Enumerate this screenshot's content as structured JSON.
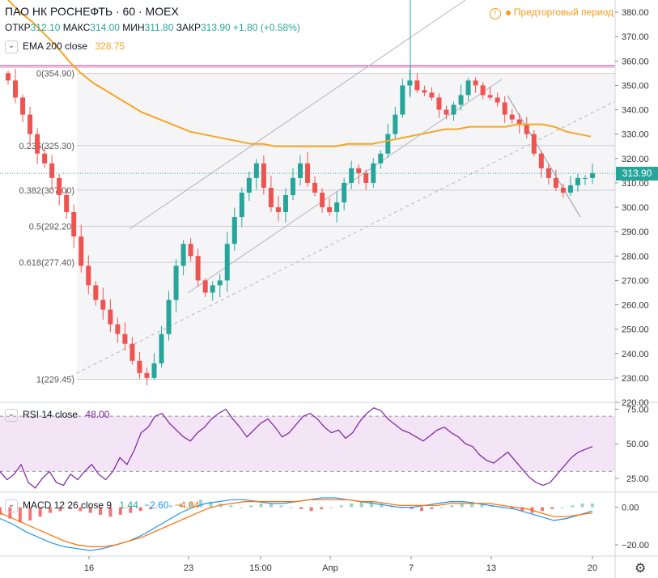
{
  "header": {
    "title": "ПАО НК РОСНЕФТЬ · 60 · MOEX",
    "ohlc": [
      {
        "k": "ОТКР",
        "v": "312.10"
      },
      {
        "k": "МАКС",
        "v": "314.00"
      },
      {
        "k": "МИН",
        "v": "311.80"
      },
      {
        "k": "ЗАКР",
        "v": "313.90"
      },
      {
        "k": "",
        "v": "+1.80 (+0.58%)"
      }
    ],
    "ema_label": "EMA 200 close",
    "ema_value": "328.75",
    "premarket": "Предторговый период"
  },
  "last_price_tag": "313.90",
  "rsi_legend": {
    "label": "RSI 14 close",
    "value": "48.00"
  },
  "macd_legend": {
    "label": "MACD 12 26 close 9",
    "v1": "1.44",
    "v2": "−2.60",
    "v3": "−4.04"
  },
  "colors": {
    "up": "#26a69a",
    "down": "#ef5350",
    "ema": "#f5a623",
    "fib_line": "#b2b5be",
    "resistance": "#d45fa8",
    "rsi_line": "#7b1fa2",
    "rsi_band": "#f3e5f5",
    "macd_line": "#2196f3",
    "signal_line": "#ff6d00",
    "price_tag": "#26a69a"
  },
  "chart_data": [
    {
      "type": "candlestick",
      "title": "ПАО НК РОСНЕФТЬ · 60 · MOEX",
      "ylim": [
        220,
        385
      ],
      "yticks": [
        "380.00",
        "370.00",
        "360.00",
        "350.00",
        "340.00",
        "330.00",
        "320.00",
        "310.00",
        "300.00",
        "290.00",
        "280.00",
        "270.00",
        "260.00",
        "250.00",
        "240.00",
        "230.00",
        "220.00"
      ],
      "x_ticks": [
        "16",
        "23",
        "15:00",
        "Апр",
        "7",
        "13",
        "20"
      ],
      "close_path": [
        352,
        345,
        338,
        330,
        322,
        318,
        312,
        305,
        298,
        288,
        276,
        268,
        262,
        258,
        252,
        248,
        244,
        237,
        232,
        230,
        236,
        248,
        262,
        276,
        285,
        280,
        270,
        265,
        268,
        270,
        285,
        296,
        306,
        312,
        318,
        308,
        300,
        298,
        305,
        312,
        318,
        310,
        306,
        300,
        298,
        302,
        310,
        316,
        314,
        310,
        318,
        322,
        330,
        338,
        350,
        352,
        348,
        347,
        345,
        340,
        338,
        342,
        346,
        352,
        350,
        346,
        345,
        343,
        338,
        336,
        334,
        330,
        322,
        316,
        312,
        308,
        306,
        309,
        312,
        312,
        314
      ],
      "ema200": [
        385,
        380,
        376,
        371,
        366,
        360,
        355,
        351,
        348,
        345,
        342,
        339,
        337,
        335,
        333,
        331,
        330,
        329,
        328,
        327,
        326,
        326,
        325,
        325,
        325,
        325,
        325,
        325,
        326,
        326,
        326,
        327,
        328,
        329,
        330,
        331,
        332,
        332,
        333,
        333,
        333,
        333,
        334,
        334,
        334,
        333,
        331,
        330,
        329
      ],
      "fib_levels": [
        {
          "label": "0(354.90)",
          "value": 354.9
        },
        {
          "label": "0.236(325.30)",
          "value": 325.3
        },
        {
          "label": "0.382(307.00)",
          "value": 307.0
        },
        {
          "label": "0.5(292.20)",
          "value": 292.2
        },
        {
          "label": "0.618(277.40)",
          "value": 277.4
        },
        {
          "label": "1(229.45)",
          "value": 229.45
        }
      ],
      "resistance": 358,
      "last_price": 313.9,
      "ema_last": 328.75
    },
    {
      "type": "line",
      "title": "RSI 14 close",
      "ylim": [
        15,
        80
      ],
      "yticks": [
        "75.00",
        "50.00",
        "25.00"
      ],
      "bands": [
        30,
        70
      ],
      "values": [
        30,
        24,
        28,
        35,
        22,
        18,
        25,
        30,
        22,
        20,
        28,
        24,
        30,
        35,
        28,
        24,
        30,
        40,
        35,
        45,
        58,
        62,
        70,
        72,
        65,
        60,
        55,
        52,
        58,
        62,
        68,
        72,
        75,
        68,
        62,
        55,
        60,
        65,
        68,
        62,
        55,
        58,
        64,
        70,
        72,
        68,
        62,
        58,
        60,
        54,
        58,
        66,
        72,
        76,
        74,
        68,
        64,
        60,
        58,
        55,
        52,
        56,
        60,
        62,
        58,
        55,
        50,
        48,
        42,
        38,
        36,
        40,
        44,
        38,
        32,
        26,
        22,
        20,
        22,
        28,
        34,
        40,
        44,
        46,
        48
      ]
    },
    {
      "type": "bar",
      "title": "MACD 12 26 close 9",
      "ylim": [
        -26,
        8
      ],
      "yticks": [
        "0.00",
        "−20.00"
      ],
      "histogram": [
        -4,
        -6,
        -8,
        -7,
        -5,
        -3,
        -2,
        -1,
        -2,
        -3,
        -4,
        -5,
        -4,
        -3,
        -2,
        -1,
        0,
        1,
        2,
        3,
        4,
        3,
        2,
        1,
        0,
        1,
        2,
        2,
        1,
        0,
        -1,
        -2,
        -1,
        0,
        1,
        2,
        3,
        3,
        2,
        1,
        0,
        -1,
        -2,
        -1,
        0,
        1,
        2,
        3,
        2,
        1,
        0,
        -1,
        -2,
        -3,
        -2,
        -1,
        0,
        1,
        2,
        2
      ],
      "macd": [
        -6,
        -9,
        -13,
        -16,
        -19,
        -21,
        -22,
        -23,
        -22,
        -20,
        -18,
        -15,
        -11,
        -7,
        -3,
        0,
        2,
        3,
        4,
        4,
        3,
        2,
        2,
        3,
        4,
        5,
        5,
        4,
        3,
        2,
        1,
        0,
        0,
        1,
        2,
        3,
        3,
        2,
        1,
        0,
        -1,
        -3,
        -5,
        -7,
        -6,
        -4,
        -2
      ],
      "signal": [
        -3,
        -6,
        -9,
        -12,
        -15,
        -18,
        -20,
        -21,
        -21,
        -20,
        -18,
        -16,
        -13,
        -10,
        -7,
        -4,
        -1,
        1,
        2,
        3,
        3,
        3,
        3,
        3,
        4,
        4,
        4,
        4,
        3,
        3,
        2,
        1,
        1,
        1,
        1,
        2,
        2,
        2,
        2,
        1,
        0,
        -1,
        -3,
        -5,
        -5,
        -4,
        -3
      ]
    }
  ]
}
